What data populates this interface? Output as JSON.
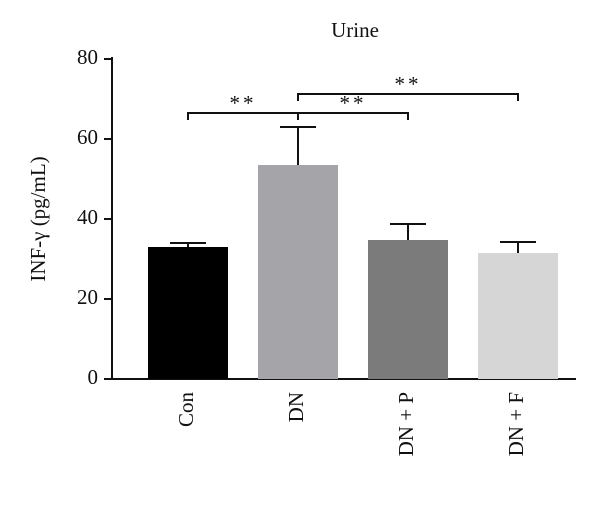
{
  "chart_data": {
    "type": "bar",
    "title": "Urine",
    "y_label": "INF-γ (pg/mL)",
    "categories": [
      "Con",
      "DN",
      "DN + P",
      "DN + F"
    ],
    "values": [
      33,
      53.5,
      34.75,
      31.5
    ],
    "errors": [
      1,
      9.5,
      4,
      2.75
    ],
    "colors": [
      "#000000",
      "#a4a4a9",
      "#7b7b7b",
      "#d6d6d6"
    ],
    "ylim": [
      0,
      80
    ],
    "yticks": [
      0,
      20,
      40,
      60,
      80
    ],
    "significance": [
      "**",
      "**",
      "**"
    ]
  }
}
